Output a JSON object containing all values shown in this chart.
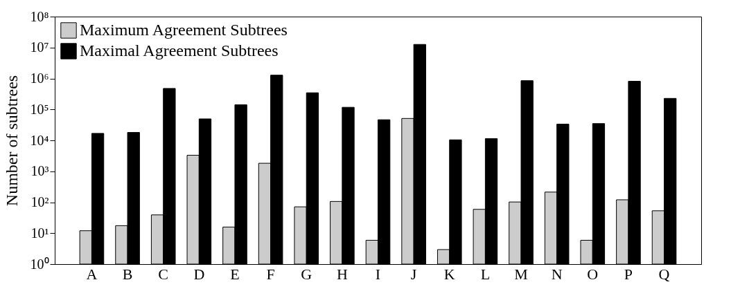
{
  "chart_data": {
    "type": "bar",
    "ylabel": "Number of subtrees",
    "categories": [
      "A",
      "B",
      "C",
      "D",
      "E",
      "F",
      "G",
      "H",
      "I",
      "J",
      "K",
      "L",
      "M",
      "N",
      "O",
      "P",
      "Q"
    ],
    "series": [
      {
        "name": "Maximum Agreement Subtrees",
        "color": "#cccccc",
        "values": [
          12,
          17.5,
          39,
          3300,
          15.8,
          1820,
          71,
          106,
          5.9,
          51000,
          2.95,
          59,
          102,
          213,
          5.9,
          120,
          53
        ]
      },
      {
        "name": "Maximal Agreement Subtrees",
        "color": "#000000",
        "values": [
          16800,
          18000,
          476000,
          49400,
          141000,
          1280000,
          345000,
          117000,
          46400,
          12600000,
          10400,
          11400,
          850000,
          33400,
          34800,
          813000,
          227000
        ]
      }
    ],
    "log": true,
    "ylim": [
      1,
      100000000
    ],
    "yticks": [
      {
        "value": 1,
        "label": "10⁰"
      },
      {
        "value": 10,
        "label": "10¹"
      },
      {
        "value": 100,
        "label": "10²"
      },
      {
        "value": 1000,
        "label": "10³"
      },
      {
        "value": 10000,
        "label": "10⁴"
      },
      {
        "value": 100000,
        "label": "10⁵"
      },
      {
        "value": 1000000,
        "label": "10⁶"
      },
      {
        "value": 10000000,
        "label": "10⁷"
      },
      {
        "value": 100000000,
        "label": "10⁸"
      }
    ],
    "legend": "top left",
    "grid": false
  }
}
